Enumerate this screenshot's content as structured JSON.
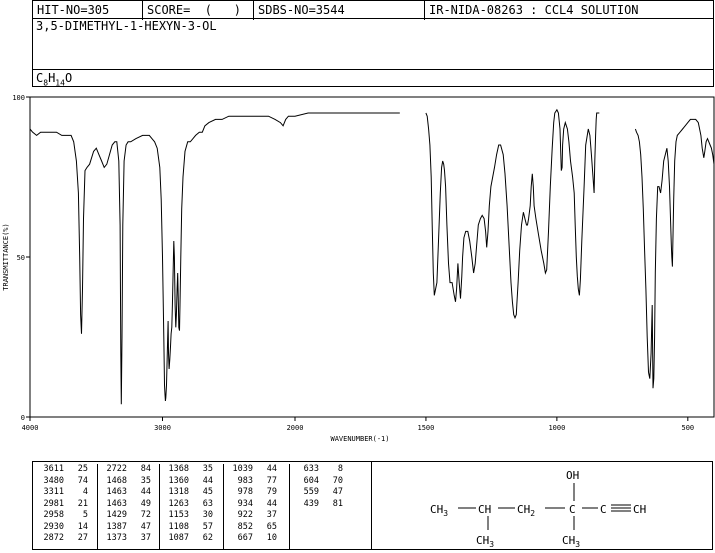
{
  "header": {
    "hit_no": "HIT-NO=305",
    "score": "SCORE=  (   )",
    "sdbs_no": "SDBS-NO=3544",
    "ir_nida": "IR-NIDA-08263 : CCL4 SOLUTION"
  },
  "compound_name": "3,5-DIMETHYL-1-HEXYN-3-OL",
  "formula": {
    "c": "C",
    "c_sub": "8",
    "h": "H",
    "h_sub": "14",
    "o": "O"
  },
  "chart_data": {
    "type": "line",
    "xlabel": "WAVENUMBER(-1)",
    "ylabel": "TRANSMITTANCE(%)",
    "xlim": [
      4000,
      400
    ],
    "ylim": [
      0,
      100
    ],
    "x_ticks": [
      "4000",
      "3000",
      "2000",
      "1500",
      "1000",
      "500"
    ],
    "y_ticks": [
      "100",
      "50",
      "0"
    ],
    "segments": [
      {
        "x": [
          4000,
          3980,
          3950,
          3920,
          3900,
          3880,
          3850,
          3800,
          3760,
          3720,
          3690,
          3670,
          3650,
          3635,
          3625,
          3618,
          3611,
          3604,
          3596,
          3585,
          3570,
          3550,
          3520,
          3500,
          3480,
          3460,
          3440,
          3420,
          3400,
          3380,
          3360,
          3345,
          3330,
          3320,
          3315,
          3311,
          3306,
          3300,
          3290,
          3275,
          3260,
          3240,
          3200,
          3150,
          3100,
          3080,
          3060,
          3040,
          3020,
          3010,
          3000,
          2990,
          2985,
          2981,
          2978,
          2975,
          2970,
          2964,
          2958,
          2955,
          2950,
          2945,
          2940,
          2935,
          2930,
          2925,
          2920,
          2915,
          2910,
          2905,
          2900,
          2895,
          2890,
          2885,
          2880,
          2877,
          2872,
          2868,
          2862,
          2855,
          2845,
          2830,
          2810,
          2790,
          2770,
          2750,
          2722,
          2700,
          2680,
          2650,
          2600,
          2550,
          2500,
          2400,
          2300,
          2200,
          2150,
          2110,
          2090,
          2070,
          2050,
          2000,
          1950,
          1900,
          1850,
          1800,
          1750,
          1700,
          1650,
          1600
        ],
        "y": [
          90,
          89,
          88,
          89,
          89,
          89,
          89,
          89,
          88,
          88,
          88,
          86,
          80,
          70,
          50,
          32,
          26,
          40,
          62,
          77,
          78,
          79,
          83,
          84,
          82,
          80,
          78,
          79,
          82,
          85,
          86,
          86,
          80,
          60,
          20,
          4,
          25,
          60,
          80,
          85,
          86,
          86,
          87,
          88,
          88,
          87,
          86,
          84,
          78,
          68,
          50,
          25,
          10,
          7,
          5,
          6,
          10,
          20,
          30,
          20,
          15,
          18,
          22,
          26,
          28,
          35,
          45,
          55,
          50,
          35,
          28,
          32,
          40,
          45,
          35,
          28,
          27,
          35,
          50,
          65,
          75,
          83,
          86,
          86,
          87,
          88,
          89,
          89,
          91,
          92,
          93,
          93,
          94,
          94,
          94,
          94,
          93,
          92,
          91,
          93,
          94,
          94,
          95,
          95,
          95,
          95,
          95,
          95,
          95,
          95
        ]
      },
      {
        "x": [
          1500,
          1495,
          1490,
          1485,
          1480,
          1476,
          1472,
          1468,
          1463,
          1458,
          1452,
          1445,
          1440,
          1436,
          1432,
          1429,
          1425,
          1420,
          1414,
          1408,
          1400,
          1392,
          1387,
          1383,
          1378,
          1373,
          1368,
          1363,
          1360,
          1355,
          1348,
          1340,
          1333,
          1325,
          1318,
          1312,
          1305,
          1300,
          1292,
          1285,
          1278,
          1272,
          1268,
          1263,
          1258,
          1252,
          1245,
          1238,
          1230,
          1222,
          1215,
          1205,
          1198,
          1190,
          1185,
          1180,
          1175,
          1170,
          1165,
          1160,
          1155,
          1153,
          1148,
          1142,
          1135,
          1128,
          1122,
          1116,
          1112,
          1108,
          1102,
          1098,
          1094,
          1090,
          1087,
          1080,
          1070,
          1060,
          1050,
          1044,
          1039,
          1032,
          1025,
          1018,
          1012,
          1008,
          1000,
          994,
          988,
          983,
          980,
          978,
          974,
          968,
          960,
          954,
          948,
          940,
          934,
          930,
          926,
          922,
          918,
          914,
          910,
          905,
          896,
          890,
          880,
          874,
          868,
          862,
          858,
          855,
          852,
          850,
          848,
          846,
          842,
          838
        ],
        "y": [
          95,
          94,
          90,
          85,
          75,
          60,
          45,
          38,
          40,
          42,
          55,
          70,
          78,
          80,
          79,
          77,
          72,
          60,
          48,
          42,
          42,
          38,
          36,
          40,
          48,
          42,
          37,
          44,
          50,
          56,
          58,
          58,
          55,
          50,
          45,
          48,
          55,
          60,
          62,
          63,
          62,
          58,
          53,
          58,
          66,
          72,
          75,
          78,
          82,
          85,
          85,
          82,
          76,
          66,
          58,
          50,
          42,
          36,
          32,
          31,
          32,
          35,
          42,
          52,
          60,
          64,
          62,
          60,
          60,
          62,
          66,
          72,
          76,
          72,
          66,
          62,
          57,
          52,
          48,
          45,
          46,
          58,
          72,
          84,
          92,
          95,
          96,
          95,
          90,
          77,
          78,
          85,
          90,
          92,
          90,
          86,
          80,
          75,
          70,
          60,
          50,
          44,
          40,
          38,
          43,
          55,
          72,
          85,
          90,
          88,
          82,
          75,
          70,
          80,
          88,
          93,
          95,
          95,
          95,
          95
        ]
      },
      {
        "x": [
          700,
          696,
          690,
          685,
          680,
          675,
          670,
          665,
          660,
          655,
          650,
          645,
          640,
          636,
          633,
          630,
          627,
          624,
          620,
          615,
          610,
          604,
          598,
          592,
          586,
          580,
          575,
          570,
          566,
          563,
          561,
          559,
          557,
          554,
          550,
          545,
          540,
          530,
          520,
          510,
          500,
          490,
          480,
          470,
          460,
          450,
          445,
          439,
          435,
          430,
          425,
          420,
          415,
          410,
          405,
          400
        ],
        "y": [
          90,
          89,
          88,
          86,
          82,
          75,
          65,
          52,
          40,
          25,
          14,
          12,
          20,
          35,
          9,
          12,
          25,
          45,
          62,
          72,
          72,
          70,
          74,
          80,
          82,
          84,
          80,
          72,
          62,
          54,
          50,
          47,
          55,
          68,
          80,
          86,
          88,
          89,
          90,
          91,
          92,
          93,
          93,
          93,
          92,
          88,
          84,
          81,
          83,
          86,
          87,
          86,
          85,
          84,
          82,
          79
        ]
      }
    ],
    "peaks": [
      {
        "w": "3611",
        "t": "25"
      },
      {
        "w": "3480",
        "t": "74"
      },
      {
        "w": "3311",
        "t": "4"
      },
      {
        "w": "2981",
        "t": "21"
      },
      {
        "w": "2958",
        "t": "5"
      },
      {
        "w": "2930",
        "t": "14"
      },
      {
        "w": "2872",
        "t": "27"
      },
      {
        "w": "2722",
        "t": "84"
      },
      {
        "w": "1468",
        "t": "35"
      },
      {
        "w": "1463",
        "t": "44"
      },
      {
        "w": "1463",
        "t": "49"
      },
      {
        "w": "1429",
        "t": "72"
      },
      {
        "w": "1387",
        "t": "47"
      },
      {
        "w": "1373",
        "t": "37"
      },
      {
        "w": "1368",
        "t": "35"
      },
      {
        "w": "1360",
        "t": "44"
      },
      {
        "w": "1318",
        "t": "45"
      },
      {
        "w": "1263",
        "t": "63"
      },
      {
        "w": "1153",
        "t": "30"
      },
      {
        "w": "1108",
        "t": "57"
      },
      {
        "w": "1087",
        "t": "62"
      },
      {
        "w": "1039",
        "t": "44"
      },
      {
        "w": "983",
        "t": "77"
      },
      {
        "w": "978",
        "t": "79"
      },
      {
        "w": "934",
        "t": "44"
      },
      {
        "w": "922",
        "t": "37"
      },
      {
        "w": "852",
        "t": "65"
      },
      {
        "w": "667",
        "t": "10"
      },
      {
        "w": "633",
        "t": "8"
      },
      {
        "w": "604",
        "t": "70"
      },
      {
        "w": "559",
        "t": "47"
      },
      {
        "w": "439",
        "t": "81"
      }
    ]
  },
  "structure": {
    "oh": "OH",
    "ch3_left": "CH",
    "ch3_left_sub": "3",
    "ch": "CH",
    "ch2": "CH",
    "ch2_sub": "2",
    "c": "C",
    "c2": "C",
    "ch_end": "CH",
    "ch3_bottom1": "CH",
    "ch3_bottom1_sub": "3",
    "ch3_bottom2": "CH",
    "ch3_bottom2_sub": "3"
  }
}
